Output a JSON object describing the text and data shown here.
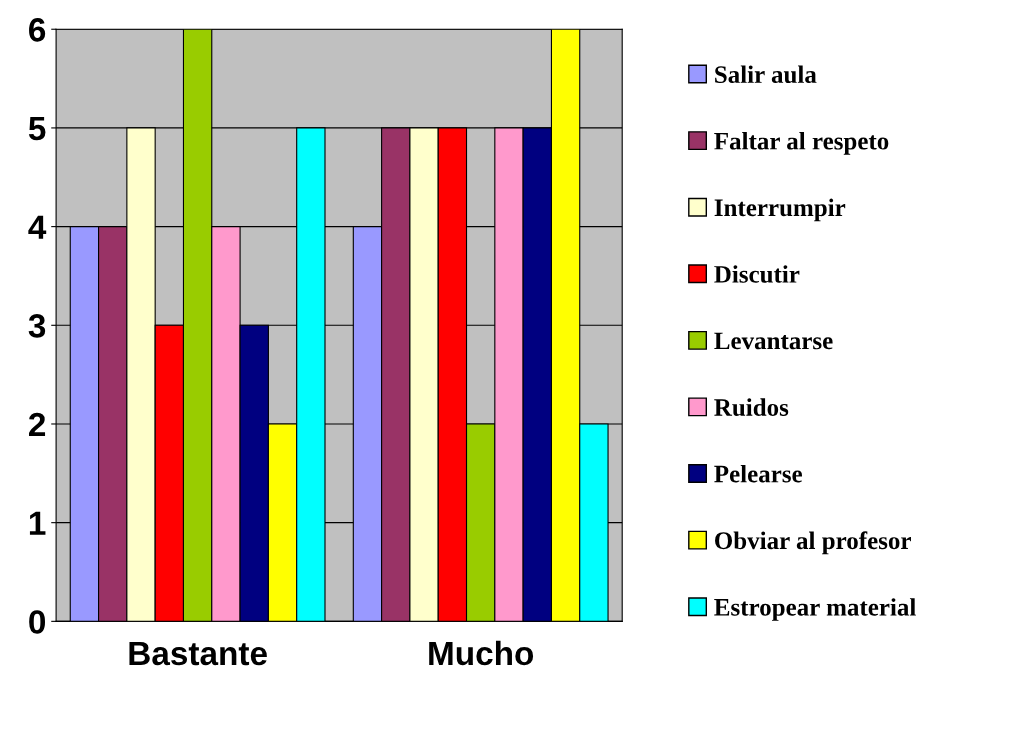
{
  "chart_data": {
    "type": "bar",
    "categories": [
      "Bastante",
      "Mucho"
    ],
    "series": [
      {
        "name": "Salir aula",
        "color": "#9999ff",
        "values": [
          4,
          4
        ]
      },
      {
        "name": "Faltar al respeto",
        "color": "#993366",
        "values": [
          4,
          5
        ]
      },
      {
        "name": "Interrumpir",
        "color": "#ffffcc",
        "values": [
          5,
          5
        ]
      },
      {
        "name": "Discutir",
        "color": "#ff0000",
        "values": [
          3,
          5
        ]
      },
      {
        "name": "Levantarse",
        "color": "#99cc00",
        "values": [
          6,
          2
        ]
      },
      {
        "name": "Ruidos",
        "color": "#ff99cc",
        "values": [
          4,
          5
        ]
      },
      {
        "name": "Pelearse",
        "color": "#000080",
        "values": [
          3,
          5
        ]
      },
      {
        "name": "Obviar al profesor",
        "color": "#ffff00",
        "values": [
          2,
          6
        ]
      },
      {
        "name": "Estropear material",
        "color": "#00ffff",
        "values": [
          5,
          2
        ]
      }
    ],
    "ylim": [
      0,
      6
    ],
    "yticks": [
      0,
      1,
      2,
      3,
      4,
      5,
      6
    ],
    "grid": "y",
    "legend": "right"
  }
}
